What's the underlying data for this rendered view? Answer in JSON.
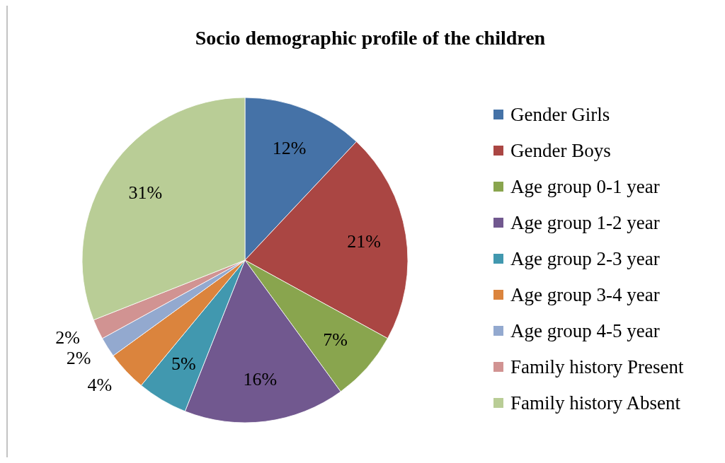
{
  "chart_data": {
    "type": "pie",
    "title": "Socio demographic profile of the children",
    "categories": [
      "Gender Girls",
      "Gender Boys",
      "Age group 0-1 year",
      "Age group 1-2 year",
      "Age group 2-3 year",
      "Age group 3-4 year",
      "Age group 4-5 year",
      "Family history Present",
      "Family history Absent"
    ],
    "values": [
      12,
      21,
      7,
      16,
      5,
      4,
      2,
      2,
      31
    ],
    "value_labels": [
      "12%",
      "21%",
      "7%",
      "16%",
      "5%",
      "4%",
      "2%",
      "2%",
      "31%"
    ],
    "colors": [
      "#4572a7",
      "#aa4643",
      "#89a54e",
      "#71588f",
      "#4198af",
      "#db843d",
      "#93a9cf",
      "#d19392",
      "#b9cd96"
    ],
    "legend": "right"
  }
}
